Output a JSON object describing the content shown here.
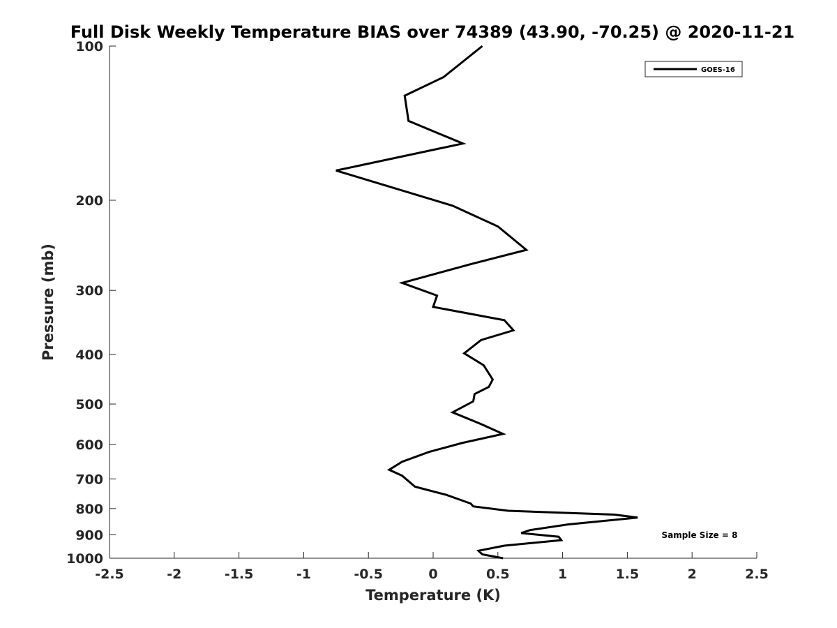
{
  "chart_data": {
    "type": "line",
    "title": "Full Disk Weekly Temperature BIAS over 74389 (43.90, -70.25) @ 2020-11-21",
    "xlabel": "Temperature (K)",
    "ylabel": "Pressure (mb)",
    "xlim": [
      -2.5,
      2.5
    ],
    "ylim": [
      1000,
      100
    ],
    "y_scale": "log",
    "y_reversed": true,
    "grid": false,
    "legend_position": "top-right",
    "x_ticks": [
      "-2.5",
      "-2",
      "-1.5",
      "-1",
      "-0.5",
      "0",
      "0.5",
      "1",
      "1.5",
      "2",
      "2.5"
    ],
    "y_ticks": [
      "100",
      "200",
      "300",
      "400",
      "500",
      "600",
      "700",
      "800",
      "900",
      "1000"
    ],
    "series": [
      {
        "name": "GOES-16",
        "color": "#000000",
        "points": [
          [
            0.38,
            100
          ],
          [
            0.08,
            115
          ],
          [
            -0.22,
            125
          ],
          [
            -0.19,
            140
          ],
          [
            0.23,
            155
          ],
          [
            -0.75,
            175
          ],
          [
            0.15,
            205
          ],
          [
            0.5,
            225
          ],
          [
            0.72,
            250
          ],
          [
            0.28,
            267
          ],
          [
            -0.24,
            290
          ],
          [
            0.03,
            307
          ],
          [
            0.0,
            323
          ],
          [
            0.55,
            343
          ],
          [
            0.62,
            359
          ],
          [
            0.37,
            375
          ],
          [
            0.24,
            398
          ],
          [
            0.39,
            420
          ],
          [
            0.46,
            448
          ],
          [
            0.43,
            463
          ],
          [
            0.32,
            478
          ],
          [
            0.31,
            494
          ],
          [
            0.15,
            519
          ],
          [
            0.37,
            547
          ],
          [
            0.54,
            572
          ],
          [
            0.22,
            596
          ],
          [
            -0.03,
            620
          ],
          [
            -0.24,
            648
          ],
          [
            -0.34,
            672
          ],
          [
            -0.24,
            690
          ],
          [
            -0.14,
            725
          ],
          [
            0.1,
            752
          ],
          [
            0.29,
            782
          ],
          [
            0.31,
            792
          ],
          [
            0.58,
            808
          ],
          [
            1.4,
            822
          ],
          [
            1.58,
            833
          ],
          [
            1.04,
            859
          ],
          [
            0.75,
            881
          ],
          [
            0.68,
            893
          ],
          [
            0.97,
            908
          ],
          [
            0.99,
            922
          ],
          [
            0.55,
            945
          ],
          [
            0.35,
            967
          ],
          [
            0.38,
            983
          ],
          [
            0.54,
            1000
          ]
        ]
      }
    ],
    "annotation": "Sample Size = 8"
  }
}
